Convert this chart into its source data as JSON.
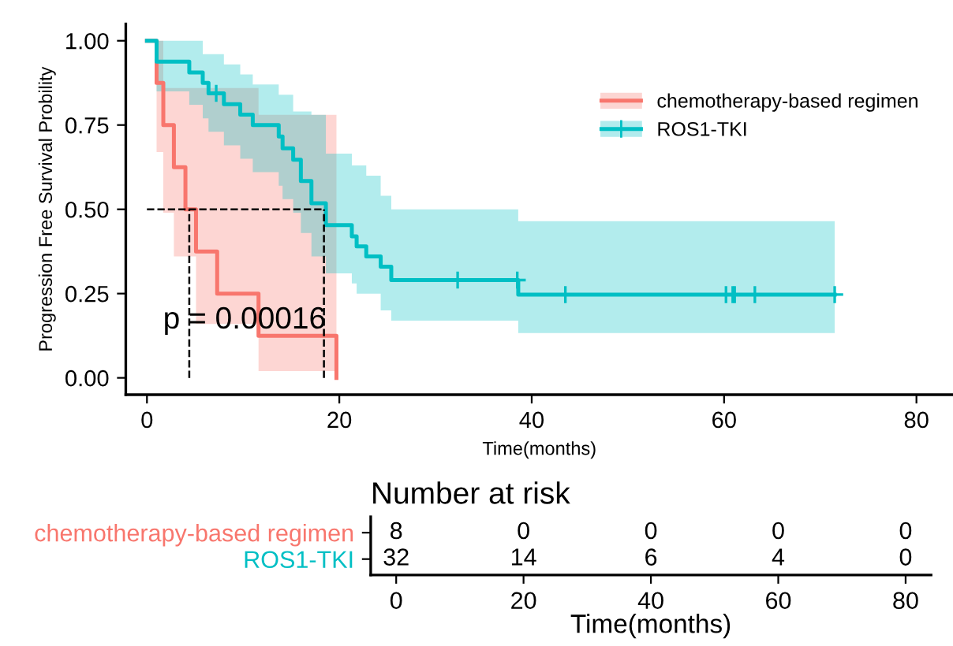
{
  "chart_data": [
    {
      "type": "step",
      "xlabel": "Time(months)",
      "ylabel": "Progression Free Survival Probility",
      "xlim": [
        -2.2,
        83.8
      ],
      "ylim": [
        -0.05,
        1.05
      ],
      "xticks": [
        0,
        20,
        40,
        60,
        80
      ],
      "yticks": [
        {
          "value": 0,
          "label": "0.00"
        },
        {
          "value": 0.25,
          "label": "0.25"
        },
        {
          "value": 0.5,
          "label": "0.50"
        },
        {
          "value": 0.75,
          "label": "0.75"
        },
        {
          "value": 1,
          "label": "1.00"
        }
      ],
      "grid": false,
      "legend": "right",
      "series": [
        {
          "name": "chemotherapy-based regimen",
          "color": "#f8766d",
          "x": [
            0,
            1.0,
            1.7,
            2.8,
            4.0,
            5.1,
            7.3,
            11.6,
            19.7
          ],
          "values": [
            1,
            0.875,
            0.75,
            0.625,
            0.5,
            0.375,
            0.25,
            0.125,
            0
          ],
          "lower": [
            1,
            0.67,
            0.49,
            0.36,
            0.36,
            0.16,
            0.16,
            0.02,
            0.02
          ],
          "upper": [
            1,
            1,
            0.86,
            0.86,
            0.86,
            0.86,
            0.86,
            0.78,
            0.78
          ]
        },
        {
          "name": "ROS1-TKI",
          "color": "#00bfc4",
          "x": [
            0,
            1.0,
            4.4,
            5.8,
            6.4,
            8.0,
            9.7,
            11.0,
            13.7,
            14.1,
            15.2,
            16.0,
            17.1,
            18.6,
            21.3,
            21.8,
            22.8,
            24.3,
            25.4,
            38.6,
            71.5
          ],
          "values": [
            1,
            0.938,
            0.906,
            0.875,
            0.844,
            0.812,
            0.781,
            0.75,
            0.716,
            0.681,
            0.647,
            0.584,
            0.518,
            0.453,
            0.42,
            0.39,
            0.36,
            0.33,
            0.29,
            0.247,
            0.247
          ],
          "lower": [
            1,
            0.85,
            0.81,
            0.77,
            0.73,
            0.69,
            0.65,
            0.61,
            0.57,
            0.53,
            0.49,
            0.43,
            0.36,
            0.31,
            0.28,
            0.25,
            0.25,
            0.2,
            0.17,
            0.133,
            0.133
          ],
          "upper": [
            1,
            1,
            1,
            0.96,
            0.96,
            0.93,
            0.9,
            0.87,
            0.84,
            0.84,
            0.79,
            0.79,
            0.78,
            0.665,
            0.63,
            0.63,
            0.6,
            0.54,
            0.5,
            0.465,
            0.465
          ]
        },
        {
          "type": "scatter",
          "color": "#00bfc4",
          "marker": "cross",
          "x": [
            7.2,
            32.3,
            38.5,
            43.5,
            60.2,
            60.9,
            61.1,
            63.2,
            71.5
          ],
          "values": [
            0.844,
            0.29,
            0.29,
            0.247,
            0.247,
            0.247,
            0.247,
            0.247,
            0.247
          ]
        }
      ],
      "ref_lines": [
        {
          "axis": "y",
          "value": 0.5,
          "line_style": "dashed"
        },
        {
          "axis": "x",
          "value": 4.4,
          "line_style": "dashed"
        },
        {
          "axis": "x",
          "value": 18.4,
          "line_style": "dashed"
        }
      ],
      "annotations": [
        "p = 0.00016"
      ]
    },
    {
      "type": "heatmap",
      "title": "Number at risk",
      "xlabel": "Time(months)",
      "categories": [
        "0",
        "20",
        "40",
        "60",
        "80"
      ],
      "y_categories": [
        "chemotherapy-based regimen",
        "ROS1-TKI"
      ],
      "data_labels": true,
      "cells": [
        [
          8,
          0,
          0,
          0,
          0
        ],
        [
          32,
          14,
          6,
          4,
          0
        ]
      ]
    }
  ]
}
